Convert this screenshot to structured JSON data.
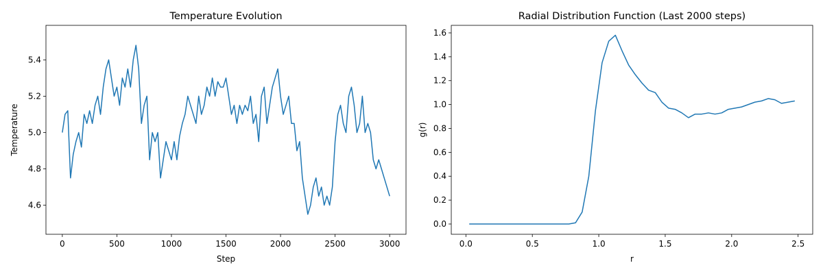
{
  "chart_data": [
    {
      "type": "line",
      "title": "Temperature Evolution",
      "xlabel": "Step",
      "ylabel": "Temperature",
      "x": [
        0,
        25,
        50,
        75,
        100,
        125,
        150,
        175,
        200,
        225,
        250,
        275,
        300,
        325,
        350,
        375,
        400,
        425,
        450,
        475,
        500,
        525,
        550,
        575,
        600,
        625,
        650,
        675,
        700,
        725,
        750,
        775,
        800,
        825,
        850,
        875,
        900,
        925,
        950,
        975,
        1000,
        1025,
        1050,
        1075,
        1100,
        1125,
        1150,
        1175,
        1200,
        1225,
        1250,
        1275,
        1300,
        1325,
        1350,
        1375,
        1400,
        1425,
        1450,
        1475,
        1500,
        1525,
        1550,
        1575,
        1600,
        1625,
        1650,
        1675,
        1700,
        1725,
        1750,
        1775,
        1800,
        1825,
        1850,
        1875,
        1900,
        1925,
        1950,
        1975,
        2000,
        2025,
        2050,
        2075,
        2100,
        2125,
        2150,
        2175,
        2200,
        2225,
        2250,
        2275,
        2300,
        2325,
        2350,
        2375,
        2400,
        2425,
        2450,
        2475,
        2500,
        2525,
        2550,
        2575,
        2600,
        2625,
        2650,
        2675,
        2700,
        2725,
        2750,
        2775,
        2800,
        2825,
        2850,
        2875,
        2900,
        2925,
        2950,
        2975,
        3000
      ],
      "series": [
        {
          "name": "Temperature",
          "color": "#1f77b4",
          "values": [
            5.0,
            5.1,
            5.12,
            4.75,
            4.88,
            4.95,
            5.0,
            4.92,
            5.1,
            5.05,
            5.12,
            5.05,
            5.15,
            5.2,
            5.1,
            5.25,
            5.35,
            5.4,
            5.3,
            5.2,
            5.25,
            5.15,
            5.3,
            5.25,
            5.35,
            5.25,
            5.4,
            5.48,
            5.35,
            5.05,
            5.15,
            5.2,
            4.85,
            5.0,
            4.95,
            5.0,
            4.75,
            4.85,
            4.95,
            4.9,
            4.85,
            4.95,
            4.85,
            4.98,
            5.05,
            5.1,
            5.2,
            5.15,
            5.1,
            5.05,
            5.2,
            5.1,
            5.15,
            5.25,
            5.2,
            5.3,
            5.2,
            5.28,
            5.25,
            5.25,
            5.3,
            5.2,
            5.1,
            5.15,
            5.05,
            5.15,
            5.1,
            5.15,
            5.12,
            5.2,
            5.05,
            5.1,
            4.95,
            5.2,
            5.25,
            5.05,
            5.15,
            5.25,
            5.3,
            5.35,
            5.2,
            5.1,
            5.15,
            5.2,
            5.05,
            5.05,
            4.9,
            4.95,
            4.75,
            4.65,
            4.55,
            4.6,
            4.7,
            4.75,
            4.65,
            4.7,
            4.6,
            4.65,
            4.6,
            4.7,
            4.95,
            5.1,
            5.15,
            5.05,
            5.0,
            5.2,
            5.25,
            5.15,
            5.0,
            5.05,
            5.2,
            5.0,
            5.05,
            5.0,
            4.85,
            4.8,
            4.85,
            4.8,
            4.75,
            4.7,
            4.65
          ]
        }
      ],
      "xlim": [
        -150,
        3150
      ],
      "ylim": [
        4.44,
        5.59
      ],
      "xticks": [
        0,
        500,
        1000,
        1500,
        2000,
        2500,
        3000
      ],
      "yticks": [
        4.6,
        4.8,
        {
          "value": 5,
          "label": "5.0"
        },
        5.2,
        5.4
      ]
    },
    {
      "type": "line",
      "title": "Radial Distribution Function (Last 2000 steps)",
      "xlabel": "r",
      "ylabel": "g(r)",
      "x": [
        0.025,
        0.075,
        0.125,
        0.175,
        0.225,
        0.275,
        0.325,
        0.375,
        0.425,
        0.475,
        0.525,
        0.575,
        0.625,
        0.675,
        0.725,
        0.775,
        0.825,
        0.875,
        0.925,
        0.975,
        1.025,
        1.075,
        1.125,
        1.175,
        1.225,
        1.275,
        1.325,
        1.375,
        1.425,
        1.475,
        1.525,
        1.575,
        1.625,
        1.675,
        1.725,
        1.775,
        1.825,
        1.875,
        1.925,
        1.975,
        2.025,
        2.075,
        2.125,
        2.175,
        2.225,
        2.275,
        2.325,
        2.375,
        2.425,
        2.475
      ],
      "series": [
        {
          "name": "g(r)",
          "color": "#1f77b4",
          "values": [
            0,
            0,
            0,
            0,
            0,
            0,
            0,
            0,
            0,
            0,
            0,
            0,
            0,
            0,
            0,
            0,
            0.01,
            0.1,
            0.4,
            0.95,
            1.35,
            1.53,
            1.58,
            1.45,
            1.33,
            1.25,
            1.18,
            1.12,
            1.1,
            1.02,
            0.97,
            0.96,
            0.93,
            0.89,
            0.92,
            0.92,
            0.93,
            0.92,
            0.93,
            0.96,
            0.97,
            0.98,
            1.0,
            1.02,
            1.03,
            1.05,
            1.04,
            1.01,
            1.02,
            1.03
          ]
        }
      ],
      "xlim": [
        -0.11,
        2.61
      ],
      "ylim": [
        -0.086,
        1.663
      ],
      "xticks": [
        {
          "value": 0,
          "label": "0.0"
        },
        0.5,
        {
          "value": 1,
          "label": "1.0"
        },
        1.5,
        {
          "value": 2,
          "label": "2.0"
        },
        2.5
      ],
      "yticks": [
        {
          "value": 0,
          "label": "0.0"
        },
        0.2,
        0.4,
        0.6,
        0.8,
        {
          "value": 1,
          "label": "1.0"
        },
        1.2,
        1.4,
        1.6
      ]
    }
  ]
}
